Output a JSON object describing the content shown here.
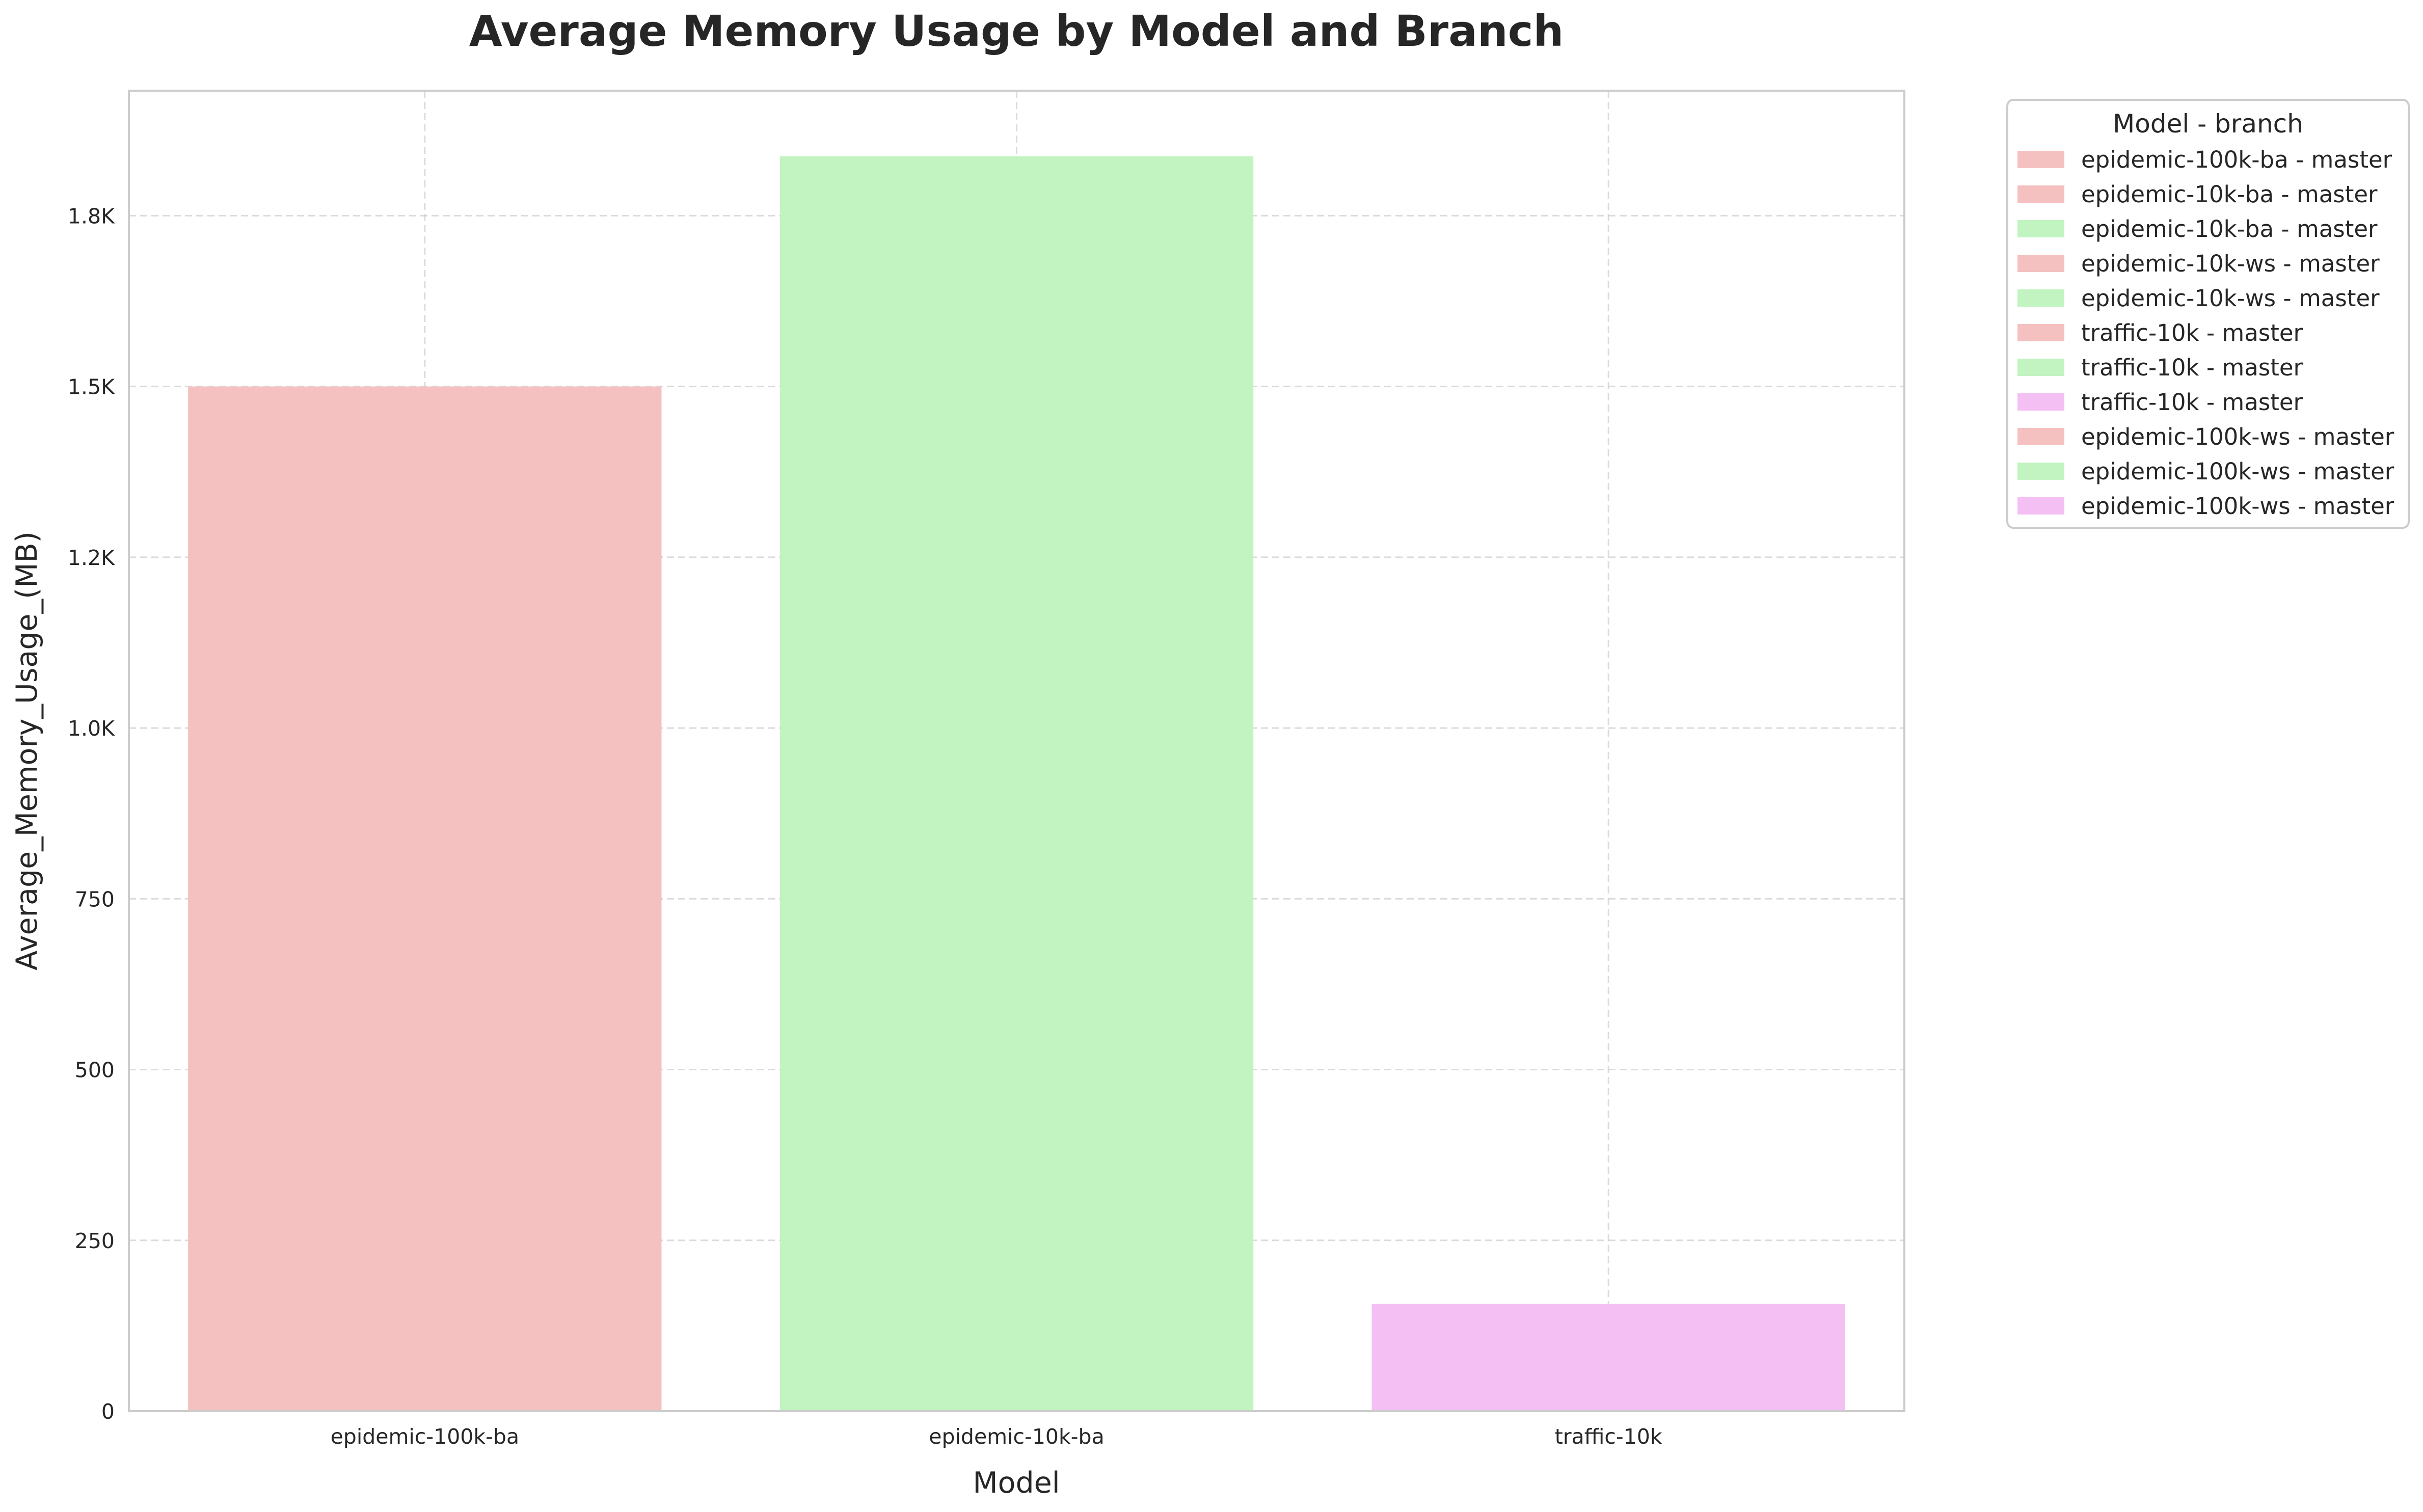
{
  "chart_data": {
    "type": "bar",
    "title": "Average Memory Usage by Model and Branch",
    "xlabel": "Model",
    "ylabel": "Average_Memory_Usage_(MB)",
    "categories": [
      "epidemic-100k-ba",
      "epidemic-10k-ba",
      "traffic-10k"
    ],
    "series": [
      {
        "name": "epidemic-100k-ba - master",
        "values": [
          1500,
          null,
          null
        ],
        "color": "#f4c0c0"
      },
      {
        "name": "epidemic-10k-ba - master",
        "values": [
          null,
          1837,
          null
        ],
        "color": "#c1f4c0"
      },
      {
        "name": "traffic-10k - master",
        "values": [
          null,
          null,
          157
        ],
        "color": "#f4c0f4"
      }
    ],
    "ylim": [
      0,
      1933
    ],
    "yticks": [
      0,
      250,
      500,
      750,
      1000,
      1250,
      1500,
      1750
    ],
    "ytick_labels": [
      "0",
      "250",
      "500",
      "750",
      "1.0K",
      "1.2K",
      "1.5K",
      "1.8K"
    ],
    "grid": true,
    "legend": {
      "title": "Model - branch",
      "placement": "outside-top-right",
      "entries": [
        {
          "label": "epidemic-100k-ba - master",
          "color": "#f4c0c0"
        },
        {
          "label": "epidemic-10k-ba - master",
          "color": "#f4c0c0"
        },
        {
          "label": "epidemic-10k-ba - master",
          "color": "#c1f4c0"
        },
        {
          "label": "epidemic-10k-ws - master",
          "color": "#f4c0c0"
        },
        {
          "label": "epidemic-10k-ws - master",
          "color": "#c1f4c0"
        },
        {
          "label": "traffic-10k - master",
          "color": "#f4c0c0"
        },
        {
          "label": "traffic-10k - master",
          "color": "#c1f4c0"
        },
        {
          "label": "traffic-10k - master",
          "color": "#f4c0f4"
        },
        {
          "label": "epidemic-100k-ws - master",
          "color": "#f4c0c0"
        },
        {
          "label": "epidemic-100k-ws - master",
          "color": "#c1f4c0"
        },
        {
          "label": "epidemic-100k-ws - master",
          "color": "#f4c0f4"
        }
      ]
    }
  }
}
